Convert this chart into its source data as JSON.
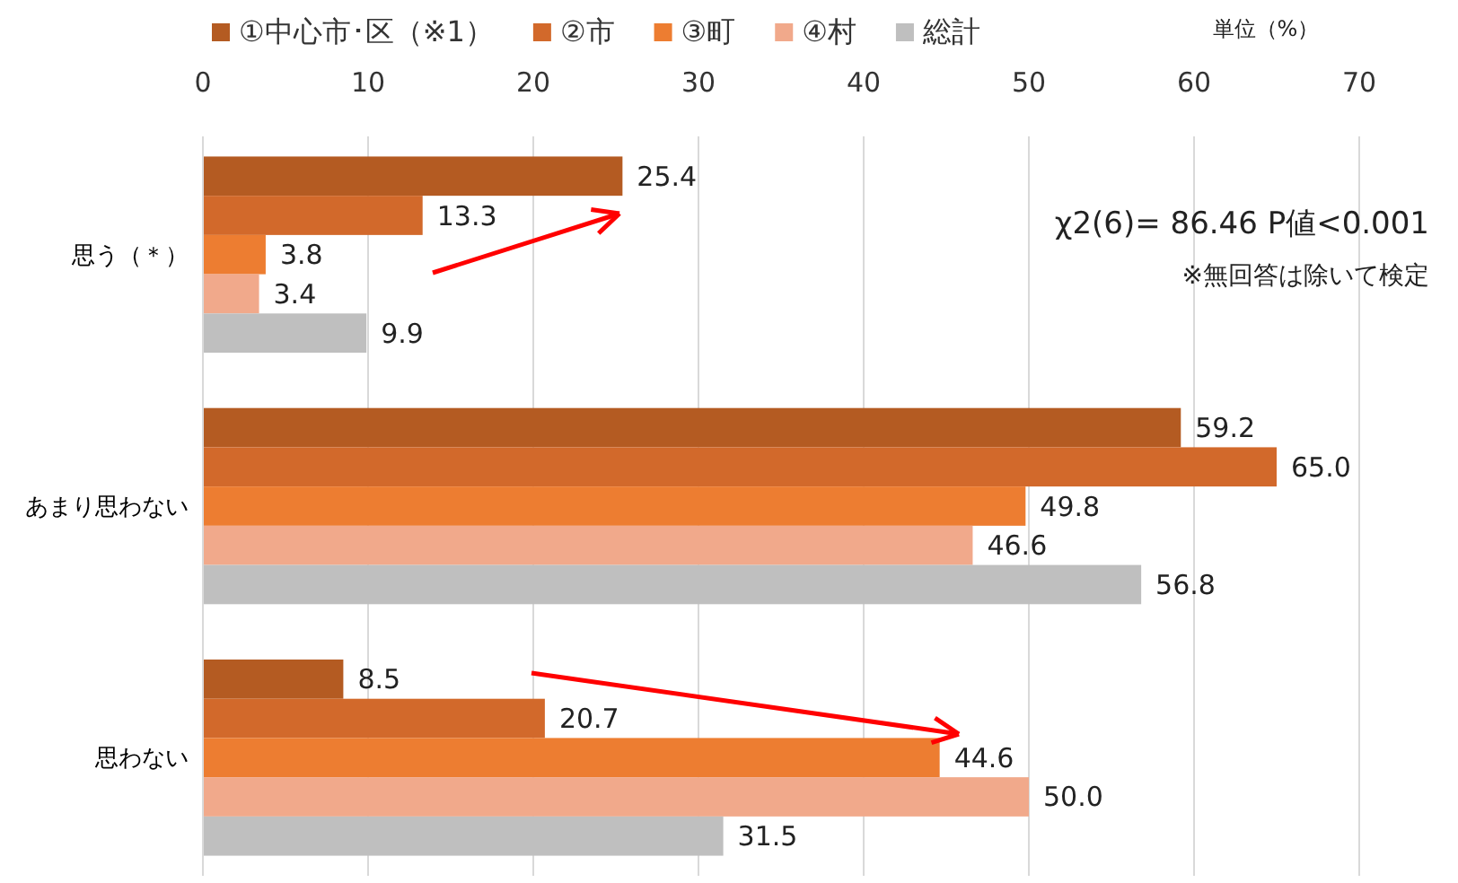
{
  "chart_data": {
    "type": "bar",
    "orientation": "horizontal",
    "categories": [
      "思う（＊）",
      "あまり思わない",
      "思わない"
    ],
    "series": [
      {
        "name": "①中心市･区（※1）",
        "color": "#b45b22",
        "values": [
          25.4,
          59.2,
          8.5
        ],
        "value_labels": [
          "25.4",
          "59.2",
          "8.5"
        ]
      },
      {
        "name": "②市",
        "color": "#d2692b",
        "values": [
          13.3,
          65,
          20.7
        ],
        "value_labels": [
          "13.3",
          "65.0",
          "20.7"
        ]
      },
      {
        "name": "③町",
        "color": "#ed7d31",
        "values": [
          3.8,
          49.8,
          44.6
        ],
        "value_labels": [
          "3.8",
          "49.8",
          "44.6"
        ]
      },
      {
        "name": "④村",
        "color": "#f1a98b",
        "values": [
          3.4,
          46.6,
          50
        ],
        "value_labels": [
          "3.4",
          "46.6",
          "50.0"
        ]
      },
      {
        "name": "総計",
        "color": "#bfbfbf",
        "values": [
          9.9,
          56.8,
          31.5
        ],
        "value_labels": [
          "9.9",
          "56.8",
          "31.5"
        ]
      }
    ],
    "xlim": [
      0,
      70
    ],
    "xticks": [
      0,
      10,
      20,
      30,
      40,
      50,
      60,
      70
    ],
    "grid": "x",
    "legend": "top",
    "annotations": [
      "単位（%）",
      "χ2(6)= 86.46 P値<0.001",
      "※無回答は除いて検定"
    ]
  }
}
